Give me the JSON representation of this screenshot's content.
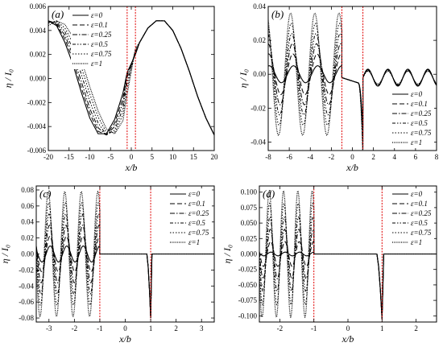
{
  "figure": {
    "legend_entries": [
      "ε=0",
      "ε=0.1",
      "ε=0.25",
      "ε=0.5",
      "ε=0.75",
      "ε=1"
    ],
    "line_styles": [
      "solid",
      "dashed",
      "dash-dot",
      "dash-dot",
      "dotted",
      "dotted"
    ],
    "marker_line_color": "#e00000",
    "curve_color": "#000000"
  },
  "chart_data": [
    {
      "type": "line",
      "panel_label": "(a)",
      "xlabel": "x/b",
      "ylabel": "η / I₀",
      "xlim": [
        -20,
        20
      ],
      "ylim": [
        -0.006,
        0.006
      ],
      "xticks": [
        -20,
        -15,
        -10,
        -5,
        0,
        5,
        10,
        15,
        20
      ],
      "xtick_labels": [
        "-20",
        "-15",
        "-10",
        "-5",
        "0",
        "5",
        "10",
        "15",
        "20"
      ],
      "yticks": [
        -0.006,
        -0.004,
        -0.002,
        0.0,
        0.002,
        0.004,
        0.006
      ],
      "ytick_labels": [
        "-0.006",
        "-0.004",
        "-0.002",
        "0.000",
        "0.002",
        "0.004",
        "0.006"
      ],
      "vlines": [
        -1,
        1
      ],
      "legend_position": "top-left",
      "grid": false,
      "x": [
        -20,
        -18,
        -16,
        -14,
        -12,
        -10,
        -8,
        -6,
        -4,
        -2,
        -1,
        1,
        2,
        4,
        6,
        8,
        10,
        12,
        14,
        16,
        18,
        20
      ],
      "series": [
        {
          "name": "ε=0",
          "values": [
            0.0048,
            0.0044,
            0.003,
            0.0011,
            -0.0012,
            -0.0033,
            -0.0046,
            -0.0046,
            -0.0034,
            -0.0012,
            0.0005,
            0.002,
            0.003,
            0.0042,
            0.0048,
            0.0048,
            0.004,
            0.0025,
            0.0006,
            -0.0015,
            -0.0033,
            -0.0047
          ]
        },
        {
          "name": "ε=0.1",
          "values": [
            0.0048,
            0.0045,
            0.0033,
            0.0015,
            -0.0008,
            -0.0029,
            -0.0044,
            -0.0047,
            -0.0037,
            -0.0016,
            0.0003,
            0.0021,
            0.003,
            0.0042,
            0.0048,
            0.0048,
            0.004,
            0.0025,
            0.0006,
            -0.0015,
            -0.0033,
            -0.0047
          ]
        },
        {
          "name": "ε=0.25",
          "values": [
            0.0048,
            0.0046,
            0.0036,
            0.0019,
            -0.0003,
            -0.0025,
            -0.0041,
            -0.0047,
            -0.004,
            -0.002,
            0.0001,
            0.0022,
            0.003,
            0.0042,
            0.0048,
            0.0048,
            0.004,
            0.0025,
            0.0006,
            -0.0015,
            -0.0033,
            -0.0047
          ]
        },
        {
          "name": "ε=0.5",
          "values": [
            0.0047,
            0.0047,
            0.0039,
            0.0024,
            0.0003,
            -0.0019,
            -0.0037,
            -0.0047,
            -0.0043,
            -0.0025,
            -0.0003,
            0.0023,
            0.003,
            0.0042,
            0.0048,
            0.0048,
            0.004,
            0.0025,
            0.0006,
            -0.0015,
            -0.0033,
            -0.0047
          ]
        },
        {
          "name": "ε=0.75",
          "values": [
            0.0046,
            0.0048,
            0.0042,
            0.0029,
            0.0009,
            -0.0013,
            -0.0032,
            -0.0045,
            -0.0045,
            -0.003,
            -0.0008,
            0.0024,
            0.003,
            0.0042,
            0.0048,
            0.0048,
            0.004,
            0.0025,
            0.0006,
            -0.0015,
            -0.0033,
            -0.0047
          ]
        },
        {
          "name": "ε=1",
          "values": [
            0.0044,
            0.0048,
            0.0045,
            0.0034,
            0.0015,
            -0.0007,
            -0.0027,
            -0.0042,
            -0.0046,
            -0.0035,
            -0.0013,
            0.0025,
            0.003,
            0.0042,
            0.0048,
            0.0048,
            0.004,
            0.0025,
            0.0006,
            -0.0015,
            -0.0033,
            -0.0047
          ]
        }
      ]
    },
    {
      "type": "line",
      "panel_label": "(b)",
      "xlabel": "x/b",
      "ylabel": "η / I₀",
      "xlim": [
        -8,
        8
      ],
      "ylim": [
        -0.045,
        0.04
      ],
      "xticks": [
        -8,
        -6,
        -4,
        -2,
        0,
        2,
        4,
        6,
        8
      ],
      "xtick_labels": [
        "-8",
        "-6",
        "-4",
        "-2",
        "0",
        "2",
        "4",
        "6",
        "8"
      ],
      "yticks": [
        -0.04,
        -0.02,
        0.0,
        0.02,
        0.04
      ],
      "ytick_labels": [
        "-0.04",
        "-0.02",
        "0.00",
        "0.02",
        "0.04"
      ],
      "vlines": [
        -1,
        1
      ],
      "legend_position": "bottom-right",
      "grid": false,
      "wave_left": {
        "x_range": [
          -8,
          -1
        ],
        "period": 2.3,
        "amplitudes": [
          0.005,
          0.012,
          0.018,
          0.024,
          0.03,
          0.036
        ]
      },
      "wave_right": {
        "x_range": [
          1,
          8
        ],
        "period": 1.9,
        "amplitude": 0.005,
        "offset": -0.002
      },
      "center_trough": {
        "x": 1.0,
        "value": -0.044
      }
    },
    {
      "type": "line",
      "panel_label": "(c)",
      "xlabel": "x/b",
      "ylabel": "η / I₀",
      "xlim": [
        -3.5,
        3.5
      ],
      "ylim": [
        -0.085,
        0.085
      ],
      "xticks": [
        -3,
        -2,
        -1,
        0,
        1,
        2,
        3
      ],
      "xtick_labels": [
        "-3",
        "-2",
        "-1",
        "0",
        "1",
        "2",
        "3"
      ],
      "yticks": [
        -0.08,
        -0.06,
        -0.04,
        -0.02,
        0.0,
        0.02,
        0.04,
        0.06,
        0.08
      ],
      "ytick_labels": [
        "-0.08",
        "-0.06",
        "-0.04",
        "-0.02",
        "0.00",
        "0.02",
        "0.04",
        "0.06",
        "0.08"
      ],
      "vlines": [
        -1,
        1
      ],
      "legend_position": "top-right",
      "grid": false,
      "wave_left": {
        "x_range": [
          -3.5,
          -1
        ],
        "period": 0.65,
        "amplitudes": [
          0.01,
          0.022,
          0.036,
          0.05,
          0.064,
          0.078
        ]
      },
      "center_trough": {
        "x": 1.0,
        "value": -0.08
      }
    },
    {
      "type": "line",
      "panel_label": "(d)",
      "xlabel": "x/b",
      "ylabel": "η / I₀",
      "xlim": [
        -2.6,
        2.6
      ],
      "ylim": [
        -0.11,
        0.11
      ],
      "xticks": [
        -2,
        -1,
        0,
        1,
        2
      ],
      "xtick_labels": [
        "-2",
        "-1",
        "0",
        "1",
        "2"
      ],
      "yticks": [
        -0.1,
        -0.075,
        -0.05,
        -0.025,
        0.0,
        0.025,
        0.05,
        0.075,
        0.1
      ],
      "ytick_labels": [
        "-0.100",
        "-0.075",
        "-0.050",
        "-0.025",
        "0.000",
        "0.025",
        "0.050",
        "0.075",
        "0.100"
      ],
      "vlines": [
        -1,
        1
      ],
      "legend_position": "top-right",
      "grid": false,
      "wave_left": {
        "x_range": [
          -2.6,
          -1
        ],
        "period": 0.42,
        "amplitudes": [
          0.003,
          0.02,
          0.04,
          0.06,
          0.082,
          0.102
        ]
      },
      "center_trough": {
        "x": 1.0,
        "value": -0.105
      }
    }
  ]
}
